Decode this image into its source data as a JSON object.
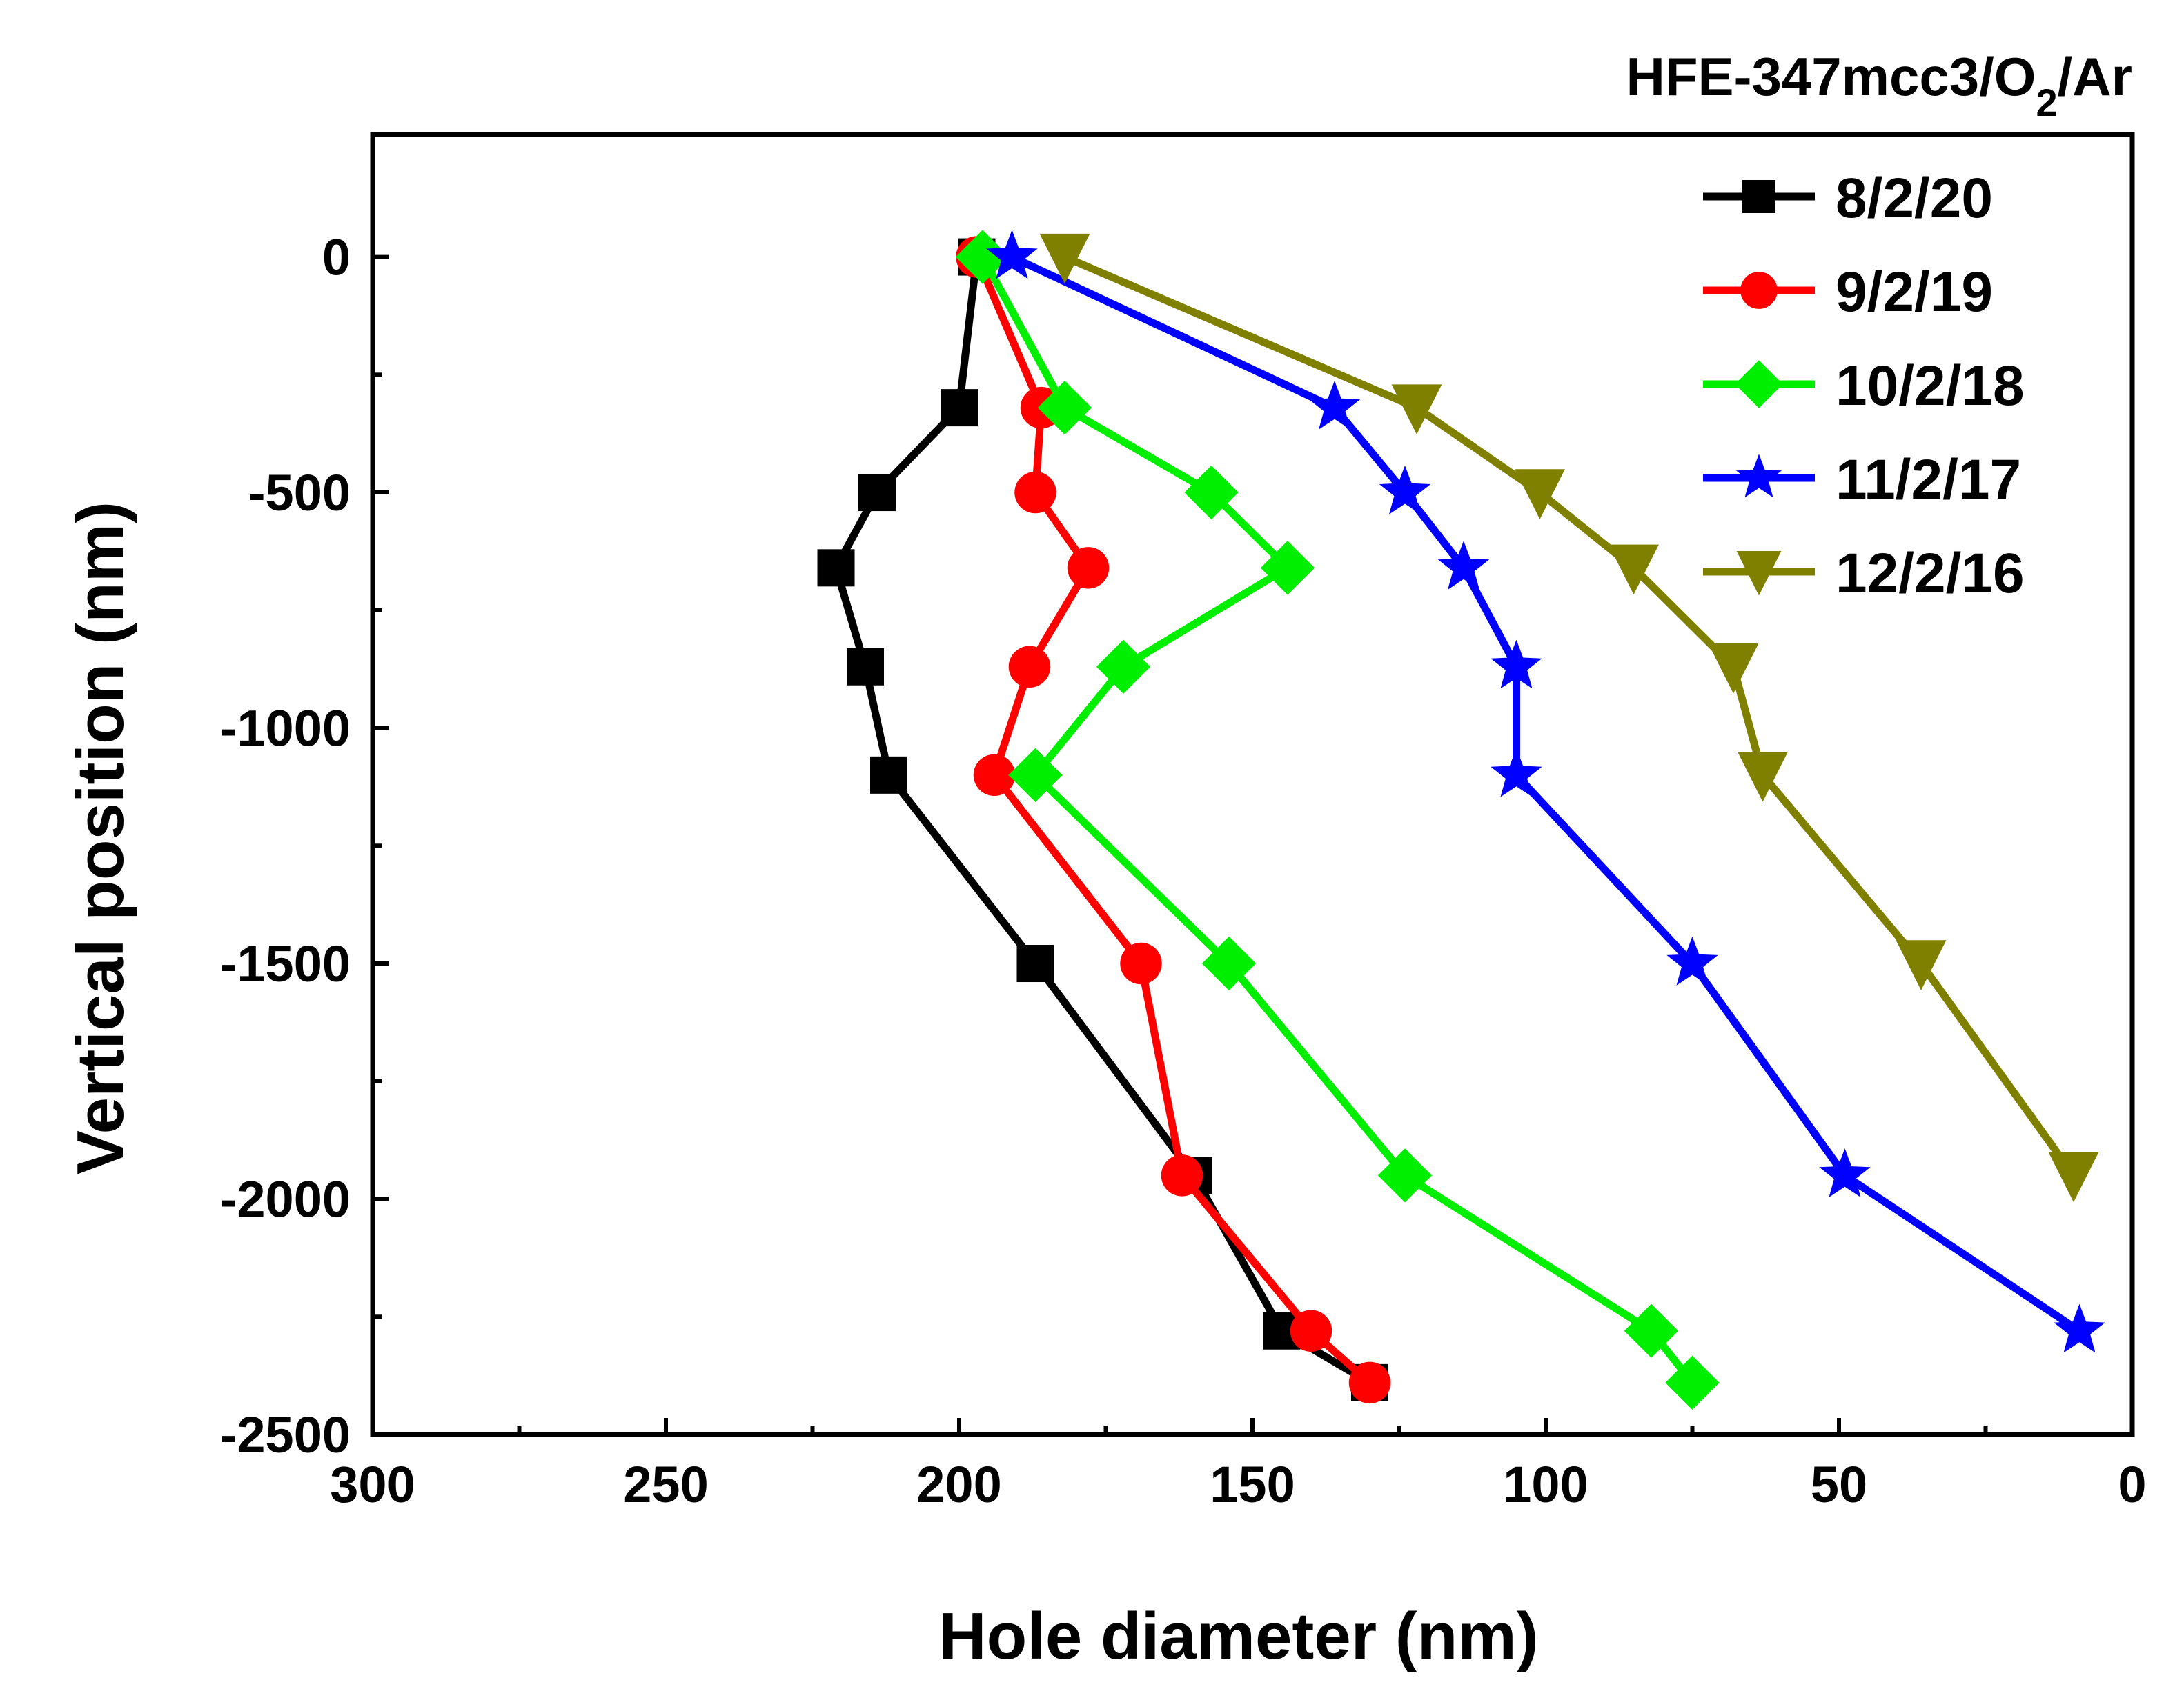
{
  "chart_data": {
    "type": "line",
    "title": "HFE-347mcc3/O",
    "title_subscript": "2",
    "title_suffix": "/Ar",
    "xlabel": "Hole diameter (nm)",
    "ylabel": "Vertical position (nm)",
    "xlim": [
      300,
      0
    ],
    "ylim": [
      -2500,
      260
    ],
    "x_ticks": [
      300,
      250,
      200,
      150,
      100,
      50,
      0
    ],
    "x_tick_labels": [
      "300",
      "250",
      "200",
      "150",
      "100",
      "50",
      "0"
    ],
    "y_ticks": [
      0,
      -500,
      -1000,
      -1500,
      -2000,
      -2500
    ],
    "y_tick_labels": [
      "0",
      "-500",
      "-1000",
      "-1500",
      "-2000",
      "-2500"
    ],
    "x_inverted": true,
    "legend_position": "top-right",
    "series": [
      {
        "name": "8/2/20",
        "color": "#000000",
        "marker": "square",
        "x": [
          197,
          200,
          214,
          221,
          216,
          212,
          187,
          160,
          145,
          130
        ],
        "y": [
          0,
          -320,
          -500,
          -660,
          -870,
          -1100,
          -1500,
          -1950,
          -2280,
          -2390
        ]
      },
      {
        "name": "9/2/19",
        "color": "#ff0000",
        "marker": "circle",
        "x": [
          197,
          186,
          187,
          178,
          188,
          194,
          169,
          162,
          140,
          130
        ],
        "y": [
          0,
          -320,
          -500,
          -660,
          -870,
          -1100,
          -1500,
          -1950,
          -2280,
          -2390
        ]
      },
      {
        "name": "10/2/18",
        "color": "#00ee00",
        "marker": "diamond",
        "x": [
          196,
          182,
          157,
          144,
          172,
          187,
          154,
          124,
          82,
          75
        ],
        "y": [
          0,
          -320,
          -500,
          -660,
          -870,
          -1100,
          -1500,
          -1950,
          -2280,
          -2390
        ]
      },
      {
        "name": "11/2/17",
        "color": "#0000ff",
        "marker": "star",
        "x": [
          191,
          136,
          124,
          114,
          105,
          105,
          75,
          49,
          9
        ],
        "y": [
          0,
          -320,
          -500,
          -660,
          -870,
          -1100,
          -1500,
          -1950,
          -2280
        ]
      },
      {
        "name": "12/2/16",
        "color": "#808000",
        "marker": "triangle-down",
        "x": [
          182,
          122,
          101,
          85,
          68,
          63,
          36,
          10
        ],
        "y": [
          0,
          -320,
          -500,
          -660,
          -870,
          -1100,
          -1500,
          -1950
        ]
      }
    ]
  }
}
